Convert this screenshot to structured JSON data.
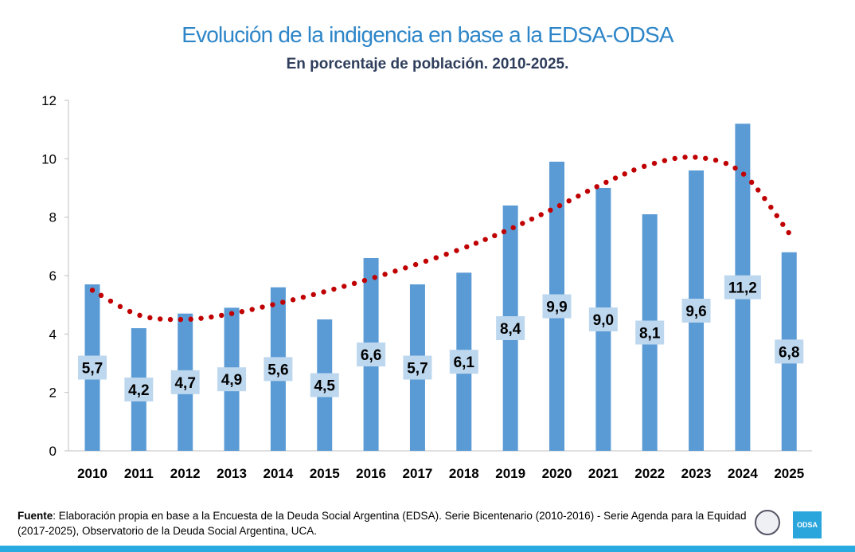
{
  "header": {
    "title": "Evolución de la indigencia en base a la EDSA-ODSA",
    "subtitle": "En porcentaje de población. 2010-2025."
  },
  "chart_data": {
    "type": "bar",
    "title": "Evolución de la indigencia en base a la EDSA-ODSA",
    "subtitle": "En porcentaje de población. 2010-2025.",
    "categories": [
      "2010",
      "2011",
      "2012",
      "2013",
      "2014",
      "2015",
      "2016",
      "2017",
      "2018",
      "2019",
      "2020",
      "2021",
      "2022",
      "2023",
      "2024",
      "2025"
    ],
    "values": [
      5.7,
      4.2,
      4.7,
      4.9,
      5.6,
      4.5,
      6.6,
      5.7,
      6.1,
      8.4,
      9.9,
      9.0,
      8.1,
      9.6,
      11.2,
      6.8
    ],
    "data_labels": [
      "5,7",
      "4,2",
      "4,7",
      "4,9",
      "5,6",
      "4,5",
      "6,6",
      "5,7",
      "6,1",
      "8,4",
      "9,9",
      "9,0",
      "8,1",
      "9,6",
      "11,2",
      "6,8"
    ],
    "trendline": {
      "style": "dotted",
      "color": "#c00000",
      "values": [
        5.5,
        4.65,
        4.5,
        4.7,
        5.05,
        5.45,
        5.9,
        6.4,
        6.95,
        7.6,
        8.35,
        9.15,
        9.8,
        10.05,
        9.5,
        7.45
      ]
    },
    "ylim": [
      0,
      12
    ],
    "yticks": [
      "0",
      "2",
      "4",
      "6",
      "8",
      "10",
      "12"
    ],
    "grid": false,
    "bar_color": "#5b9bd5",
    "label_box_color": "#bdd7ee"
  },
  "footer": {
    "source_label": "Fuente",
    "source_text": ": Elaboración propia en base a la Encuesta de la Deuda Social Argentina (EDSA). Serie Bicentenario (2010-2016) - Serie Agenda para la Equidad (2017-2025), Observatorio de la Deuda Social Argentina, UCA.",
    "logo_text": "ODSA"
  }
}
